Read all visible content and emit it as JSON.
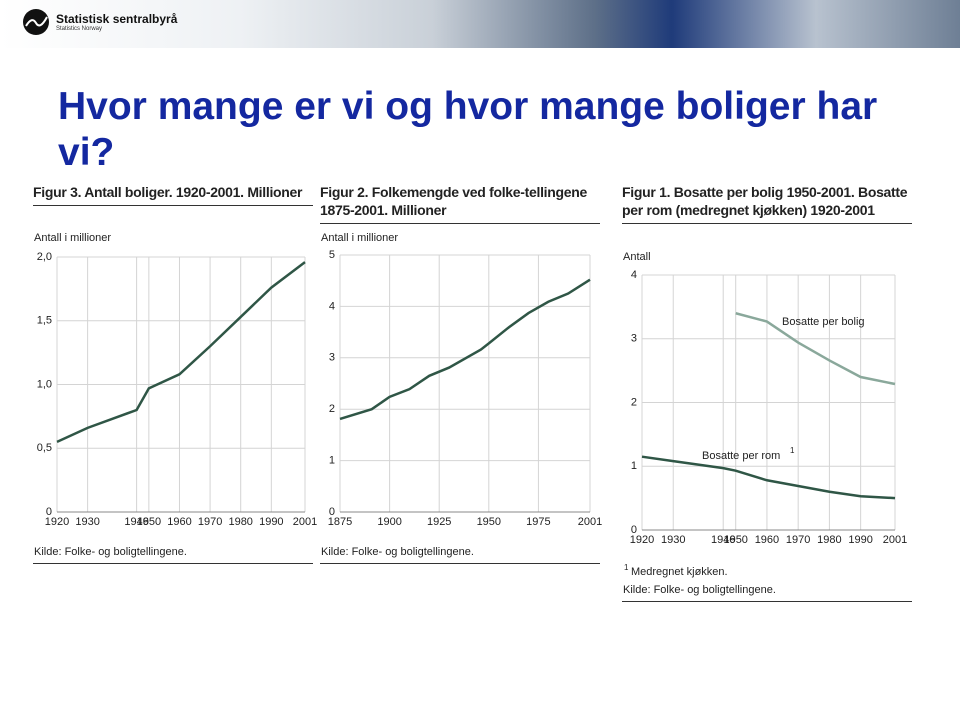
{
  "header": {
    "logo_text": "Statistisk sentralbyrå",
    "logo_sub": "Statistics Norway"
  },
  "title": "Hvor mange er vi og hvor mange boliger har vi?",
  "chart_data": [
    {
      "type": "line",
      "title": "Figur 3. Antall boliger. 1920-2001. Millioner",
      "y_label": "Antall i millioner",
      "xlim": [
        1920,
        2001
      ],
      "xticks": [
        1920,
        1930,
        1946,
        1950,
        1960,
        1970,
        1980,
        1990,
        2001
      ],
      "ylim": [
        0,
        2
      ],
      "yticks": [
        0,
        {
          "value": 0.5,
          "label": "0,5"
        },
        {
          "value": 1,
          "label": "1,0"
        },
        {
          "value": 1.5,
          "label": "1,5"
        },
        {
          "value": 2,
          "label": "2,0"
        }
      ],
      "grid": true,
      "series": [
        {
          "color": "#2f5646",
          "x": [
            1920,
            1930,
            1946,
            1950,
            1960,
            1970,
            1980,
            1990,
            2001
          ],
          "values": [
            0.55,
            0.66,
            0.8,
            0.97,
            1.08,
            1.3,
            1.53,
            1.76,
            1.96
          ]
        }
      ],
      "source": "Kilde: Folke- og boligtellingene."
    },
    {
      "type": "line",
      "title": "Figur 2. Folkemengde ved folke-tellingene 1875-2001. Millioner",
      "y_label": "Antall i millioner",
      "xlim": [
        1875,
        2001
      ],
      "xticks": [
        1875,
        1900,
        1925,
        1950,
        1975,
        2001
      ],
      "ylim": [
        0,
        5
      ],
      "yticks": [
        0,
        1,
        2,
        3,
        4,
        5
      ],
      "grid": true,
      "series": [
        {
          "color": "#2f5646",
          "x": [
            1875,
            1891,
            1900,
            1910,
            1920,
            1930,
            1946,
            1950,
            1960,
            1970,
            1980,
            1990,
            2001
          ],
          "values": [
            1.81,
            2.0,
            2.24,
            2.39,
            2.65,
            2.81,
            3.16,
            3.28,
            3.59,
            3.87,
            4.09,
            4.25,
            4.52
          ]
        }
      ],
      "source": "Kilde: Folke- og boligtellingene."
    },
    {
      "type": "line",
      "title": "Figur 1. Bosatte per bolig 1950-2001. Bosatte per rom (medregnet kjøkken) 1920-2001",
      "y_label": "Antall",
      "xlim": [
        1920,
        2001
      ],
      "xticks": [
        1920,
        1930,
        1946,
        1950,
        1960,
        1970,
        1980,
        1990,
        2001
      ],
      "ylim": [
        0,
        4
      ],
      "yticks": [
        0,
        1,
        2,
        3,
        4
      ],
      "grid": true,
      "series": [
        {
          "name": "Bosatte per bolig",
          "color": "#8aa89b",
          "x": [
            1950,
            1960,
            1970,
            1980,
            1990,
            2001
          ],
          "values": [
            3.4,
            3.27,
            2.94,
            2.66,
            2.4,
            2.29
          ]
        },
        {
          "name": "Bosatte per rom",
          "footnote_ref": "1",
          "color": "#2f5646",
          "x": [
            1920,
            1930,
            1946,
            1950,
            1960,
            1970,
            1980,
            1990,
            2001
          ],
          "values": [
            1.15,
            1.08,
            0.97,
            0.93,
            0.78,
            0.69,
            0.6,
            0.53,
            0.5
          ]
        }
      ],
      "footnote": {
        "mark": "1",
        "text": "Medregnet kjøkken."
      },
      "source": "Kilde: Folke- og boligtellingene."
    }
  ]
}
